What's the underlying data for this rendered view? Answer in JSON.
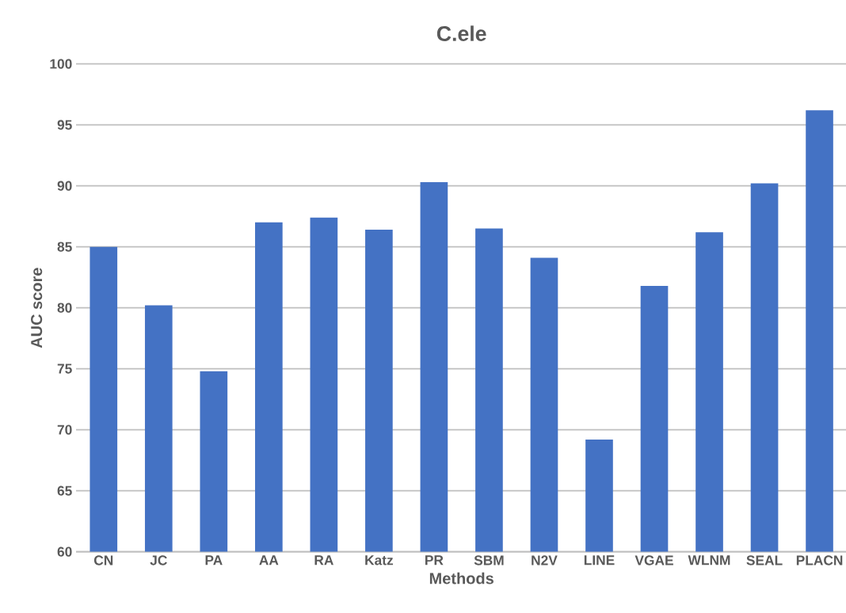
{
  "chart_data": {
    "type": "bar",
    "title": "C.ele",
    "xlabel": "Methods",
    "ylabel": "AUC score",
    "categories": [
      "CN",
      "JC",
      "PA",
      "AA",
      "RA",
      "Katz",
      "PR",
      "SBM",
      "N2V",
      "LINE",
      "VGAE",
      "WLNM",
      "SEAL",
      "PLACN"
    ],
    "values": [
      85.0,
      80.2,
      74.8,
      87.0,
      87.4,
      86.4,
      90.3,
      86.5,
      84.1,
      69.2,
      81.8,
      86.2,
      90.2,
      96.2
    ],
    "color": "#4472c4",
    "ylim": [
      60,
      100
    ],
    "yticks": [
      60,
      65,
      70,
      75,
      80,
      85,
      90,
      95,
      100
    ],
    "grid": "y"
  }
}
